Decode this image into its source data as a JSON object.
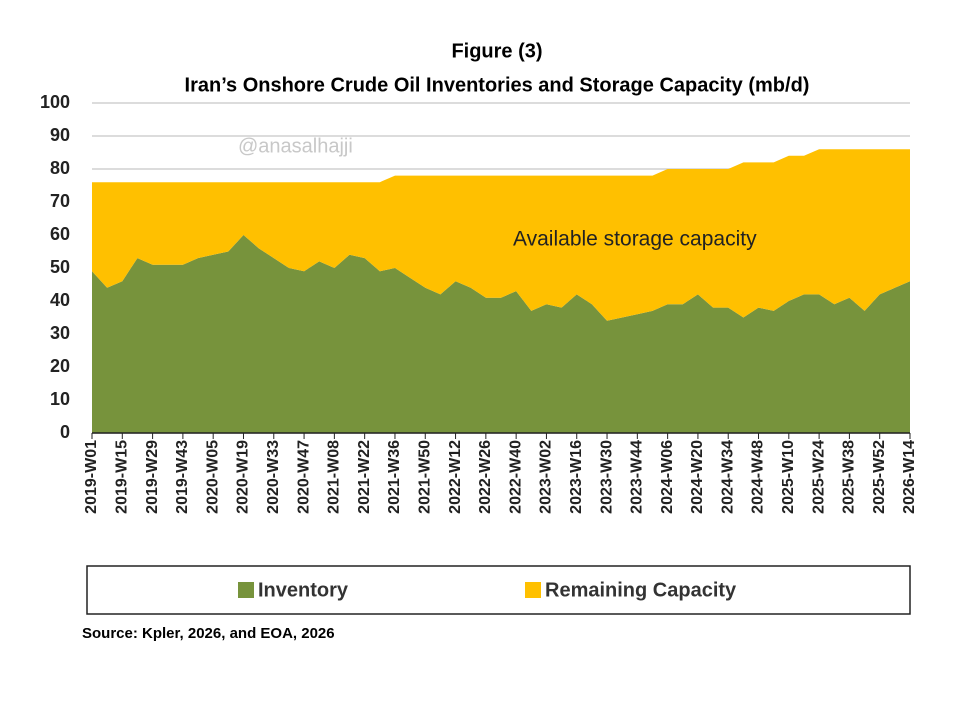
{
  "chart_data": {
    "type": "stacked_area",
    "title": "Figure (3)",
    "subtitle": "Iran’s Onshore Crude Oil Inventories and Storage Capacity (mb/d)",
    "watermark": "@anasalhajji",
    "annotation": "Available storage capacity",
    "source": "Source: Kpler, 2026, and EOA, 2026",
    "categories": [
      "2019-W01",
      null,
      "2019-W15",
      null,
      "2019-W29",
      null,
      "2019-W43",
      null,
      "2020-W05",
      null,
      "2020-W19",
      null,
      "2020-W33",
      null,
      "2020-W47",
      null,
      "2021-W08",
      null,
      "2021-W22",
      null,
      "2021-W36",
      null,
      "2021-W50",
      null,
      "2022-W12",
      null,
      "2022-W26",
      null,
      "2022-W40",
      null,
      "2023-W02",
      null,
      "2023-W16",
      null,
      "2023-W30",
      null,
      "2023-W44",
      null,
      "2024-W06",
      null,
      "2024-W20",
      null,
      "2024-W34",
      null,
      "2024-W48",
      null,
      "2025-W10",
      null,
      "2025-W24",
      null,
      "2025-W38",
      null,
      "2025-W52",
      null,
      "2026-W14"
    ],
    "series": [
      {
        "name": "Inventory",
        "color": "#77933c",
        "values": [
          49,
          44,
          46,
          53,
          51,
          51,
          51,
          53,
          54,
          55,
          60,
          56,
          53,
          50,
          49,
          52,
          50,
          54,
          53,
          49,
          50,
          47,
          44,
          42,
          46,
          44,
          41,
          41,
          43,
          37,
          39,
          38,
          42,
          39,
          34,
          35,
          36,
          37,
          39,
          39,
          42,
          38,
          38,
          35,
          38,
          37,
          40,
          42,
          42,
          39,
          41,
          37,
          42,
          44,
          46
        ]
      },
      {
        "name": "Remaining Capacity",
        "color": "#ffc000",
        "values": [
          27,
          32,
          30,
          23,
          25,
          25,
          25,
          23,
          22,
          21,
          16,
          20,
          23,
          26,
          27,
          24,
          26,
          22,
          23,
          27,
          28,
          31,
          34,
          36,
          32,
          34,
          37,
          37,
          35,
          41,
          39,
          40,
          36,
          39,
          44,
          43,
          42,
          41,
          41,
          41,
          38,
          42,
          42,
          47,
          44,
          45,
          44,
          42,
          44,
          47,
          45,
          49,
          44,
          42,
          40
        ]
      }
    ],
    "ylim": [
      0,
      100
    ],
    "yticks": [
      0,
      10,
      20,
      30,
      40,
      50,
      60,
      70,
      80,
      90,
      100
    ],
    "grid": true,
    "legend": "bottom"
  }
}
